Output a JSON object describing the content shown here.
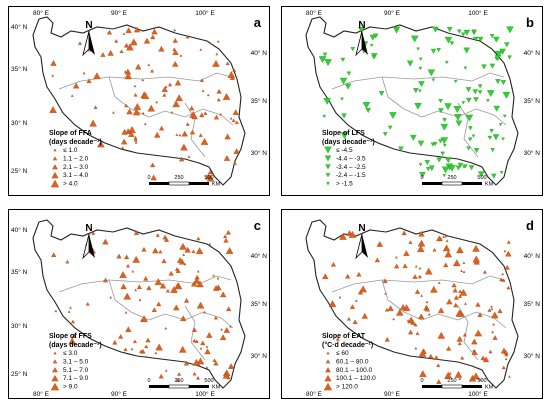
{
  "panels": [
    {
      "id": "a",
      "letter": "a",
      "legend_title_1": "Slope of FFA",
      "legend_title_2": "(days decade⁻¹)",
      "legend_items": [
        "≤ 1.0",
        "1.1 – 2.0",
        "2.1 – 3.0",
        "3.1 – 4.0",
        "> 4.0"
      ],
      "symbol": "triangle-up",
      "symbol_color": "#e0601c",
      "top_lon_labels": [
        "80° E",
        "90° E",
        "100° E"
      ],
      "bottom_lon_labels": [],
      "left_lat_labels": [
        "40° N",
        "35° N",
        "30° N",
        "25° N"
      ],
      "right_lat_labels": [
        "40° N",
        "35° N",
        "30° N"
      ],
      "scale_labels": [
        "0",
        "250",
        "500"
      ],
      "scale_unit": "KM",
      "north": "N"
    },
    {
      "id": "b",
      "letter": "b",
      "legend_title_1": "Slope of LFS",
      "legend_title_2": "(days decade⁻¹)",
      "legend_items": [
        "≤ -4.5",
        "-4.4 – -3.5",
        "-3.4 – -2.5",
        "-2.4 – -1.5",
        "> -1.5"
      ],
      "symbol": "triangle-down",
      "symbol_color": "#2fd12f",
      "top_lon_labels": [
        "80° E",
        "90° E",
        "100° E"
      ],
      "bottom_lon_labels": [],
      "left_lat_labels": [],
      "right_lat_labels": [
        "40° N",
        "35° N",
        "30° N"
      ],
      "scale_labels": [
        "0",
        "250",
        "500"
      ],
      "scale_unit": "KM",
      "north": "N"
    },
    {
      "id": "c",
      "letter": "c",
      "legend_title_1": "Slope of FFS",
      "legend_title_2": "(days decade⁻¹)",
      "legend_items": [
        "≤ 3.0",
        "3.1 – 5.0",
        "5.1 – 7.0",
        "7.1 – 9.0",
        "> 9.0"
      ],
      "symbol": "triangle-up",
      "symbol_color": "#e0601c",
      "top_lon_labels": [],
      "bottom_lon_labels": [
        "80° E",
        "90° E",
        "100° E"
      ],
      "left_lat_labels": [
        "40° N",
        "35° N",
        "30° N",
        "25° N"
      ],
      "right_lat_labels": [
        "40° N",
        "35° N",
        "30° N"
      ],
      "scale_labels": [
        "0",
        "250",
        "500"
      ],
      "scale_unit": "KM",
      "north": "N"
    },
    {
      "id": "d",
      "letter": "d",
      "legend_title_1": "Slope of EAT",
      "legend_title_2": "(°C·d decade⁻¹)",
      "legend_items": [
        "≤ 60",
        "60.1 – 80.0",
        "80.1 – 100.0",
        "100.1 – 120.0",
        "> 120.0"
      ],
      "symbol": "triangle-up",
      "symbol_color": "#e0601c",
      "top_lon_labels": [],
      "bottom_lon_labels": [
        "80° E",
        "90° E",
        "100° E"
      ],
      "left_lat_labels": [],
      "right_lat_labels": [
        "40° N",
        "35° N",
        "30° N"
      ],
      "scale_labels": [
        "0",
        "250",
        "500"
      ],
      "scale_unit": "KM",
      "north": "N"
    }
  ]
}
